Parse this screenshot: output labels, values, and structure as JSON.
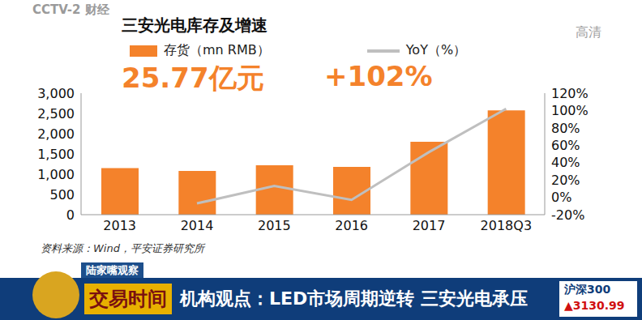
{
  "chart_data": {
    "type": "bar",
    "title": "三安光电库存及增速",
    "categories": [
      "2013",
      "2014",
      "2015",
      "2016",
      "2017",
      "2018Q3"
    ],
    "series": [
      {
        "name": "存货（mn RMB）",
        "type": "bar",
        "color": "#f4822b",
        "values": [
          1150,
          1080,
          1220,
          1180,
          1800,
          2577
        ]
      },
      {
        "name": "YoY（%）",
        "type": "line",
        "axis": "y2",
        "color": "#bfbfbf",
        "values": [
          null,
          -7,
          13,
          -3,
          52,
          102
        ]
      }
    ],
    "ylim": [
      0,
      3000
    ],
    "yticks": [
      0,
      500,
      {
        "value": 1000,
        "label": "1,000"
      },
      {
        "value": 1500,
        "label": "1,500"
      },
      {
        "value": 2000,
        "label": "2,000"
      },
      {
        "value": 2500,
        "label": "2,500"
      },
      {
        "value": 3000,
        "label": "3,000"
      }
    ],
    "y2lim": [
      -20,
      120
    ],
    "y2ticks": [
      {
        "value": -20,
        "label": "-20%"
      },
      {
        "value": 0,
        "label": "0%"
      },
      {
        "value": 20,
        "label": "20%"
      },
      {
        "value": 40,
        "label": "40%"
      },
      {
        "value": 60,
        "label": "60%"
      },
      {
        "value": 80,
        "label": "80%"
      },
      {
        "value": 100,
        "label": "100%"
      },
      {
        "value": 120,
        "label": "120%"
      }
    ],
    "grid": false,
    "legend": "top",
    "annotations": [
      "25.77亿元",
      "+102%"
    ],
    "source": "资料来源：Wind，平安证券研究所"
  },
  "banner": {
    "channel": "CCTV-2 财经",
    "hd": "高清",
    "program": "陆家嘴观察",
    "show": "交易时间",
    "headline": "机构观点：LED市场周期逆转 三安光电承压",
    "index_name": "沪深300",
    "index_value": "▲3130.99"
  }
}
